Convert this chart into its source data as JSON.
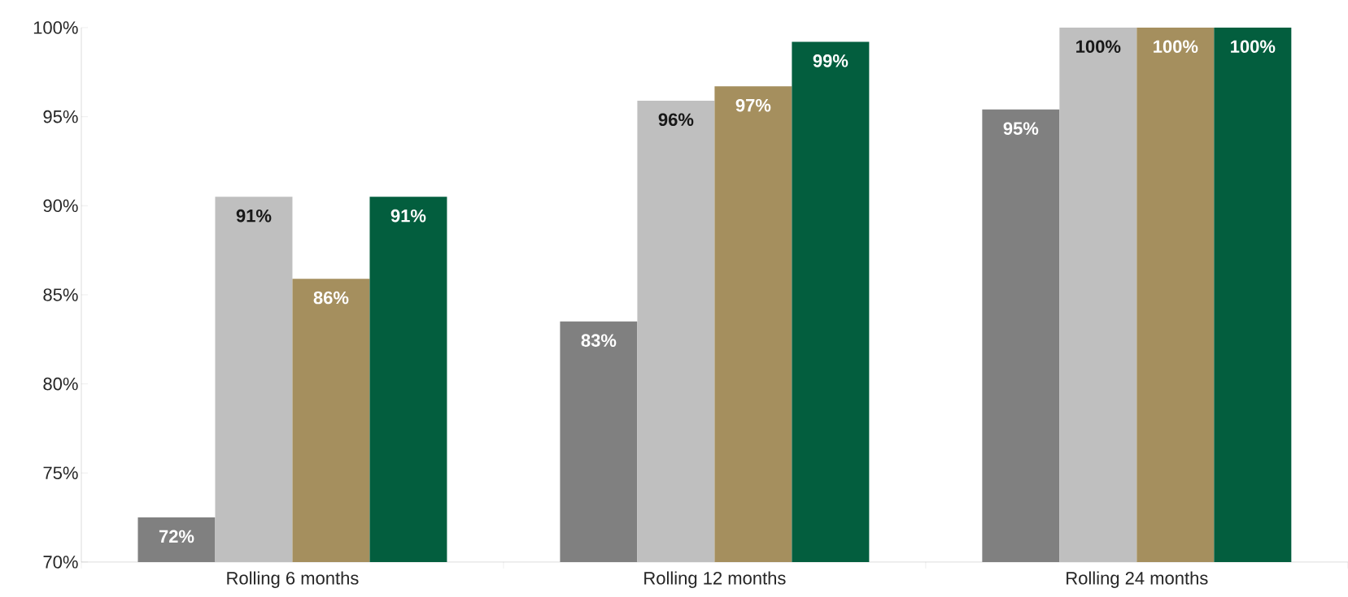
{
  "chart_data": {
    "type": "bar",
    "categories": [
      "Rolling 6 months",
      "Rolling 12 months",
      "Rolling 24 months"
    ],
    "series": [
      {
        "color": "#808080",
        "values": [
          72.5,
          83.5,
          95.4
        ],
        "value_labels": [
          "72%",
          "83%",
          "95%"
        ]
      },
      {
        "color": "#bfbfbf",
        "values": [
          90.5,
          95.9,
          100
        ],
        "value_labels": [
          "91%",
          "96%",
          "100%"
        ]
      },
      {
        "color": "#a58f5e",
        "values": [
          85.9,
          96.7,
          100
        ],
        "value_labels": [
          "86%",
          "97%",
          "100%"
        ]
      },
      {
        "color": "#035e3e",
        "values": [
          90.5,
          99.2,
          100
        ],
        "value_labels": [
          "91%",
          "99%",
          "100%"
        ]
      }
    ],
    "ylim": [
      70,
      100
    ],
    "yticks": [
      {
        "value": 70,
        "label": "70%"
      },
      {
        "value": 75,
        "label": "75%"
      },
      {
        "value": 80,
        "label": "80%"
      },
      {
        "value": 85,
        "label": "85%"
      },
      {
        "value": 90,
        "label": "90%"
      },
      {
        "value": 95,
        "label": "95%"
      },
      {
        "value": 100,
        "label": "100%"
      }
    ],
    "grid": false
  }
}
